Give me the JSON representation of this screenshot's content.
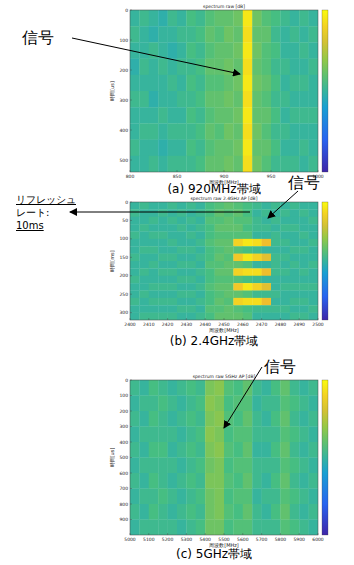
{
  "chart_data": [
    {
      "type": "heatmap",
      "title": "spectrum raw [dB]",
      "x_label": "周波数[MHz]",
      "y_label": "時間[us]",
      "caption": "(a) 920MHz帯域",
      "xlim": [
        800,
        1000
      ],
      "xticks": [
        800,
        850,
        900,
        950,
        1000
      ],
      "ylim": [
        0,
        540
      ],
      "yticks": [
        0,
        100,
        200,
        300,
        400,
        500
      ],
      "color_range": [
        0,
        40
      ],
      "annotations": [
        "信号"
      ],
      "cells": [
        [
          20,
          21,
          20,
          19,
          21,
          20,
          22,
          21,
          23,
          24,
          24,
          25,
          38,
          25,
          23,
          22,
          21,
          20,
          21,
          20
        ],
        [
          21,
          20,
          19,
          20,
          20,
          21,
          21,
          22,
          24,
          23,
          25,
          24,
          37,
          24,
          24,
          21,
          20,
          21,
          20,
          21
        ],
        [
          20,
          20,
          21,
          20,
          19,
          20,
          22,
          21,
          23,
          24,
          24,
          25,
          38,
          25,
          23,
          22,
          20,
          20,
          21,
          20
        ],
        [
          19,
          21,
          20,
          21,
          20,
          21,
          21,
          22,
          24,
          24,
          25,
          24,
          37,
          24,
          23,
          21,
          21,
          20,
          20,
          21
        ],
        [
          20,
          20,
          20,
          20,
          21,
          20,
          22,
          21,
          23,
          23,
          24,
          25,
          38,
          25,
          24,
          22,
          20,
          21,
          21,
          20
        ],
        [
          21,
          21,
          19,
          20,
          20,
          21,
          21,
          22,
          24,
          24,
          25,
          24,
          37,
          24,
          23,
          21,
          21,
          20,
          20,
          20
        ],
        [
          20,
          20,
          20,
          21,
          20,
          20,
          22,
          21,
          23,
          24,
          24,
          25,
          38,
          24,
          24,
          22,
          20,
          21,
          21,
          21
        ],
        [
          20,
          21,
          21,
          20,
          21,
          21,
          21,
          22,
          24,
          23,
          25,
          24,
          37,
          25,
          23,
          21,
          21,
          20,
          20,
          20
        ],
        [
          21,
          20,
          20,
          19,
          20,
          20,
          22,
          21,
          23,
          24,
          24,
          25,
          38,
          24,
          24,
          22,
          20,
          20,
          21,
          20
        ],
        [
          20,
          20,
          21,
          20,
          21,
          21,
          21,
          22,
          24,
          24,
          25,
          24,
          37,
          25,
          23,
          21,
          21,
          21,
          20,
          21
        ]
      ]
    },
    {
      "type": "heatmap",
      "title": "spectrum raw 2.4GHz AP [dB]",
      "x_label": "周波数[MHz]",
      "y_label": "時間[ms]",
      "caption": "(b) 2.4GHz帯域",
      "xlim": [
        2400,
        2500
      ],
      "xticks": [
        2400,
        2410,
        2420,
        2430,
        2440,
        2450,
        2460,
        2470,
        2480,
        2490,
        2500
      ],
      "ylim": [
        0,
        320
      ],
      "yticks": [
        0,
        50,
        100,
        150,
        200,
        250,
        300
      ],
      "color_range": [
        0,
        40
      ],
      "annotations": [
        "信号",
        "リフレッシュ",
        "レート:",
        "10ms"
      ],
      "cells": [
        [
          20,
          21,
          20,
          20,
          21,
          20,
          21,
          20,
          22,
          23,
          24,
          23,
          22,
          21,
          20,
          21,
          20,
          21,
          20,
          20
        ],
        [
          21,
          20,
          20,
          21,
          20,
          21,
          20,
          21,
          22,
          24,
          23,
          24,
          22,
          20,
          21,
          20,
          21,
          20,
          21,
          20
        ],
        [
          20,
          20,
          21,
          20,
          21,
          20,
          21,
          20,
          23,
          23,
          24,
          23,
          23,
          21,
          20,
          21,
          20,
          20,
          20,
          21
        ],
        [
          20,
          21,
          20,
          20,
          20,
          21,
          20,
          21,
          22,
          24,
          24,
          24,
          22,
          21,
          21,
          20,
          21,
          21,
          20,
          20
        ],
        [
          21,
          20,
          21,
          21,
          20,
          20,
          21,
          20,
          22,
          23,
          23,
          23,
          23,
          20,
          20,
          21,
          20,
          20,
          21,
          20
        ],
        [
          20,
          20,
          20,
          20,
          21,
          20,
          20,
          21,
          23,
          24,
          24,
          36,
          38,
          37,
          34,
          21,
          21,
          20,
          20,
          21
        ],
        [
          20,
          21,
          21,
          20,
          20,
          21,
          21,
          20,
          22,
          23,
          24,
          23,
          22,
          21,
          20,
          20,
          20,
          21,
          21,
          20
        ],
        [
          21,
          20,
          20,
          21,
          21,
          20,
          20,
          21,
          22,
          24,
          23,
          35,
          38,
          36,
          33,
          21,
          21,
          20,
          20,
          20
        ],
        [
          20,
          20,
          21,
          20,
          20,
          21,
          21,
          20,
          23,
          23,
          24,
          24,
          23,
          20,
          20,
          21,
          20,
          21,
          20,
          21
        ],
        [
          20,
          21,
          20,
          21,
          21,
          20,
          20,
          21,
          22,
          24,
          24,
          36,
          37,
          37,
          34,
          21,
          21,
          20,
          21,
          20
        ],
        [
          21,
          20,
          20,
          20,
          20,
          21,
          21,
          20,
          22,
          23,
          23,
          23,
          22,
          21,
          20,
          20,
          20,
          20,
          20,
          20
        ],
        [
          20,
          20,
          21,
          21,
          21,
          20,
          20,
          21,
          23,
          24,
          24,
          35,
          38,
          36,
          33,
          20,
          21,
          21,
          21,
          21
        ],
        [
          20,
          21,
          20,
          20,
          20,
          21,
          21,
          20,
          22,
          23,
          24,
          24,
          23,
          21,
          21,
          21,
          20,
          20,
          20,
          20
        ],
        [
          21,
          20,
          21,
          21,
          21,
          20,
          20,
          21,
          22,
          24,
          23,
          36,
          37,
          37,
          34,
          20,
          20,
          21,
          21,
          20
        ],
        [
          20,
          20,
          20,
          20,
          20,
          21,
          21,
          20,
          23,
          23,
          24,
          23,
          22,
          21,
          21,
          21,
          21,
          20,
          20,
          21
        ],
        [
          20,
          21,
          21,
          21,
          21,
          20,
          20,
          21,
          22,
          24,
          24,
          24,
          23,
          20,
          20,
          20,
          20,
          21,
          21,
          20
        ]
      ]
    },
    {
      "type": "heatmap",
      "title": "spectrum raw 5GHz AP [dB]",
      "x_label": "周波数[MHz]",
      "y_label": "時間[us]",
      "caption": "(c) 5GHz帯域",
      "xlim": [
        5000,
        6000
      ],
      "xticks": [
        5000,
        5100,
        5200,
        5300,
        5400,
        5500,
        5600,
        5700,
        5800,
        5900,
        6000
      ],
      "ylim": [
        0,
        1000
      ],
      "yticks": [
        0,
        100,
        200,
        300,
        400,
        500,
        600,
        700,
        800,
        900
      ],
      "color_range": [
        0,
        40
      ],
      "annotations": [
        "信号"
      ],
      "cells": [
        [
          21,
          20,
          22,
          21,
          20,
          21,
          22,
          21,
          26,
          27,
          23,
          22,
          24,
          21,
          20,
          22,
          24,
          21,
          20,
          21
        ],
        [
          20,
          21,
          21,
          22,
          21,
          20,
          21,
          22,
          27,
          26,
          22,
          23,
          23,
          20,
          21,
          21,
          23,
          22,
          21,
          20
        ],
        [
          21,
          20,
          22,
          21,
          20,
          21,
          22,
          21,
          26,
          27,
          23,
          22,
          24,
          21,
          20,
          22,
          24,
          21,
          20,
          21
        ],
        [
          20,
          21,
          21,
          21,
          21,
          20,
          21,
          22,
          27,
          26,
          22,
          23,
          23,
          21,
          21,
          21,
          23,
          22,
          21,
          20
        ],
        [
          21,
          20,
          22,
          22,
          20,
          21,
          22,
          21,
          26,
          27,
          23,
          22,
          24,
          20,
          20,
          22,
          24,
          21,
          20,
          21
        ],
        [
          20,
          21,
          21,
          21,
          21,
          20,
          21,
          22,
          25,
          26,
          22,
          23,
          23,
          21,
          21,
          21,
          23,
          22,
          21,
          20
        ],
        [
          21,
          20,
          22,
          21,
          20,
          21,
          22,
          21,
          26,
          26,
          23,
          22,
          24,
          21,
          20,
          22,
          24,
          21,
          20,
          21
        ],
        [
          20,
          21,
          21,
          22,
          21,
          20,
          21,
          22,
          25,
          26,
          22,
          23,
          23,
          20,
          21,
          21,
          23,
          22,
          21,
          20
        ],
        [
          21,
          20,
          22,
          21,
          20,
          21,
          22,
          21,
          25,
          26,
          23,
          22,
          24,
          21,
          20,
          22,
          24,
          21,
          20,
          21
        ],
        [
          20,
          21,
          21,
          21,
          21,
          20,
          21,
          22,
          25,
          25,
          22,
          23,
          23,
          21,
          21,
          21,
          23,
          22,
          21,
          20
        ]
      ]
    }
  ]
}
